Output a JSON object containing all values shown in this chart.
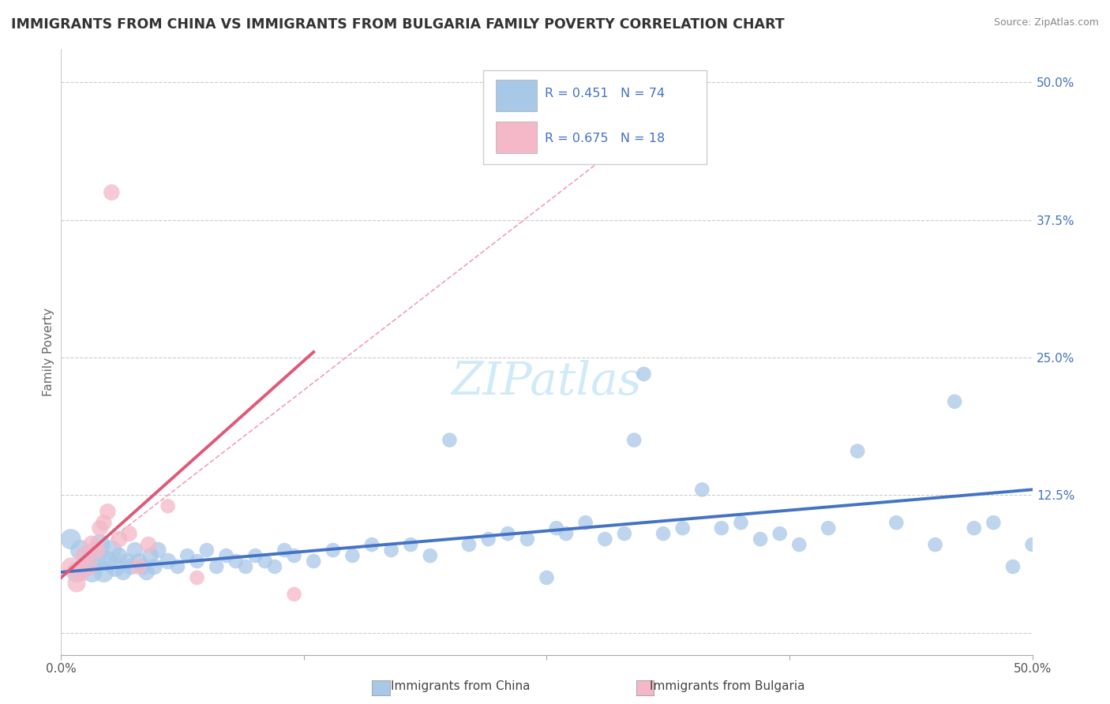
{
  "title": "IMMIGRANTS FROM CHINA VS IMMIGRANTS FROM BULGARIA FAMILY POVERTY CORRELATION CHART",
  "source": "Source: ZipAtlas.com",
  "ylabel": "Family Poverty",
  "x_lim": [
    0.0,
    0.5
  ],
  "y_lim": [
    -0.02,
    0.53
  ],
  "y_ticks": [
    0.0,
    0.125,
    0.25,
    0.375,
    0.5
  ],
  "y_tick_labels": [
    "",
    "12.5%",
    "25.0%",
    "37.5%",
    "50.0%"
  ],
  "china_R": 0.451,
  "china_N": 74,
  "bulgaria_R": 0.675,
  "bulgaria_N": 18,
  "china_color": "#a8c8e8",
  "china_line_color": "#4472c4",
  "bulgaria_color": "#f4b8c8",
  "bulgaria_line_color": "#e05878",
  "bulgaria_dash_color": "#f0a0b8",
  "watermark_color": "#d0eaf8",
  "china_x": [
    0.005,
    0.008,
    0.01,
    0.012,
    0.014,
    0.016,
    0.018,
    0.02,
    0.022,
    0.024,
    0.026,
    0.028,
    0.03,
    0.032,
    0.034,
    0.036,
    0.038,
    0.04,
    0.042,
    0.044,
    0.046,
    0.048,
    0.05,
    0.055,
    0.06,
    0.065,
    0.07,
    0.075,
    0.08,
    0.085,
    0.09,
    0.095,
    0.1,
    0.105,
    0.11,
    0.115,
    0.12,
    0.13,
    0.14,
    0.15,
    0.16,
    0.17,
    0.18,
    0.19,
    0.2,
    0.21,
    0.22,
    0.23,
    0.24,
    0.25,
    0.255,
    0.26,
    0.27,
    0.28,
    0.29,
    0.295,
    0.3,
    0.31,
    0.32,
    0.33,
    0.34,
    0.35,
    0.36,
    0.37,
    0.38,
    0.395,
    0.41,
    0.43,
    0.45,
    0.46,
    0.47,
    0.48,
    0.49,
    0.5
  ],
  "china_y": [
    0.085,
    0.055,
    0.075,
    0.06,
    0.07,
    0.055,
    0.065,
    0.08,
    0.055,
    0.065,
    0.075,
    0.06,
    0.07,
    0.055,
    0.065,
    0.06,
    0.075,
    0.065,
    0.06,
    0.055,
    0.07,
    0.06,
    0.075,
    0.065,
    0.06,
    0.07,
    0.065,
    0.075,
    0.06,
    0.07,
    0.065,
    0.06,
    0.07,
    0.065,
    0.06,
    0.075,
    0.07,
    0.065,
    0.075,
    0.07,
    0.08,
    0.075,
    0.08,
    0.07,
    0.175,
    0.08,
    0.085,
    0.09,
    0.085,
    0.05,
    0.095,
    0.09,
    0.1,
    0.085,
    0.09,
    0.175,
    0.235,
    0.09,
    0.095,
    0.13,
    0.095,
    0.1,
    0.085,
    0.09,
    0.08,
    0.095,
    0.165,
    0.1,
    0.08,
    0.21,
    0.095,
    0.1,
    0.06,
    0.08
  ],
  "bulgaria_x": [
    0.005,
    0.008,
    0.01,
    0.012,
    0.014,
    0.016,
    0.018,
    0.02,
    0.022,
    0.024,
    0.026,
    0.03,
    0.035,
    0.04,
    0.045,
    0.055,
    0.07,
    0.12
  ],
  "bulgaria_y": [
    0.06,
    0.045,
    0.055,
    0.07,
    0.06,
    0.08,
    0.075,
    0.095,
    0.1,
    0.11,
    0.4,
    0.085,
    0.09,
    0.06,
    0.08,
    0.115,
    0.05,
    0.035
  ],
  "china_line_x0": 0.0,
  "china_line_y0": 0.055,
  "china_line_x1": 0.5,
  "china_line_y1": 0.13,
  "bulg_line_solid_x0": 0.0,
  "bulg_line_solid_y0": 0.05,
  "bulg_line_solid_x1": 0.13,
  "bulg_line_solid_y1": 0.255,
  "bulg_line_dash_x0": 0.0,
  "bulg_line_dash_y0": 0.05,
  "bulg_line_dash_x1": 0.33,
  "bulg_line_dash_y1": 0.5
}
